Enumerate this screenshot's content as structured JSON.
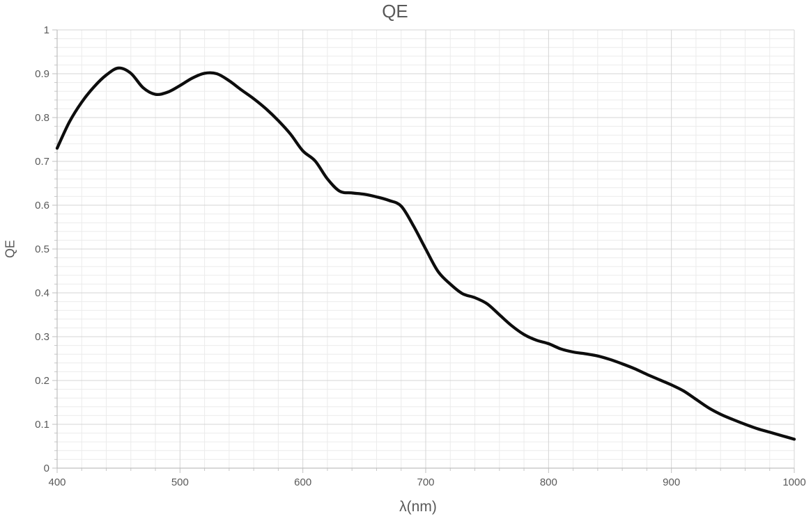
{
  "chart_data": {
    "type": "line",
    "title": "QE",
    "xlabel": "λ(nm)",
    "ylabel": "QE",
    "xlim": [
      400,
      1000
    ],
    "ylim": [
      0,
      1
    ],
    "x_major_unit": 100,
    "x_minor_unit": 20,
    "y_major_unit": 0.1,
    "y_minor_unit": 0.02,
    "x_tick_labels": [
      "400",
      "500",
      "600",
      "700",
      "800",
      "900",
      "1000"
    ],
    "y_tick_labels": [
      "0",
      "0.1",
      "0.2",
      "0.3",
      "0.4",
      "0.5",
      "0.6",
      "0.7",
      "0.8",
      "0.9",
      "1"
    ],
    "grid": "major+minor",
    "legend": "none",
    "smooth": true,
    "series": [
      {
        "name": "QE",
        "x": [
          400,
          410,
          420,
          430,
          440,
          450,
          460,
          470,
          480,
          490,
          500,
          510,
          520,
          530,
          540,
          550,
          560,
          570,
          580,
          590,
          600,
          610,
          620,
          630,
          640,
          650,
          660,
          670,
          680,
          690,
          700,
          710,
          720,
          730,
          740,
          750,
          760,
          770,
          780,
          790,
          800,
          810,
          820,
          830,
          840,
          850,
          860,
          870,
          880,
          890,
          900,
          910,
          920,
          930,
          940,
          950,
          960,
          970,
          980,
          990,
          1000
        ],
        "y": [
          0.73,
          0.79,
          0.835,
          0.87,
          0.897,
          0.913,
          0.901,
          0.868,
          0.853,
          0.858,
          0.873,
          0.89,
          0.901,
          0.9,
          0.884,
          0.863,
          0.843,
          0.82,
          0.793,
          0.762,
          0.724,
          0.701,
          0.66,
          0.632,
          0.628,
          0.625,
          0.619,
          0.611,
          0.598,
          0.553,
          0.5,
          0.449,
          0.42,
          0.398,
          0.389,
          0.375,
          0.35,
          0.325,
          0.305,
          0.292,
          0.284,
          0.272,
          0.265,
          0.261,
          0.256,
          0.248,
          0.238,
          0.227,
          0.214,
          0.202,
          0.19,
          0.176,
          0.157,
          0.138,
          0.123,
          0.111,
          0.1,
          0.09,
          0.082,
          0.074,
          0.066
        ]
      }
    ]
  },
  "colors": {
    "background": "#ffffff",
    "line": "#0d0d0d",
    "text": "#595959",
    "grid_major": "#d4d4d4",
    "grid_minor": "#ebebeb",
    "axis": "#bfbfbf",
    "tick": "#c6c6c6"
  }
}
